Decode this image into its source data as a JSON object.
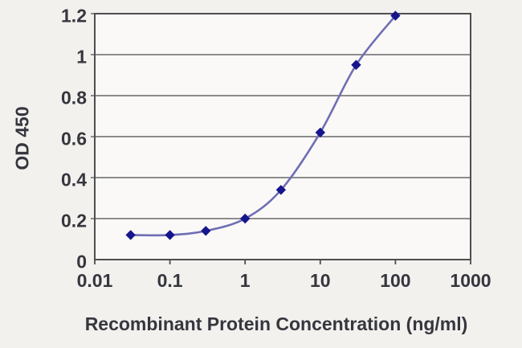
{
  "chart_data": {
    "type": "line",
    "title": "",
    "xlabel": "Recombinant Protein Concentration (ng/ml)",
    "ylabel": "OD 450",
    "x_scale": "log",
    "xlim": [
      0.01,
      1000
    ],
    "ylim": [
      0,
      1.2
    ],
    "x_ticks": [
      "0.01",
      "0.1",
      "1",
      "10",
      "100",
      "1000"
    ],
    "y_ticks": [
      "0",
      "0.2",
      "0.4",
      "0.6",
      "0.8",
      "1",
      "1.2"
    ],
    "grid": "horizontal",
    "legend_position": "none",
    "series": [
      {
        "name": "OD 450",
        "marker": "diamond",
        "x": [
          0.03,
          0.1,
          0.3,
          1,
          3,
          10,
          30,
          100
        ],
        "values": [
          0.12,
          0.12,
          0.14,
          0.2,
          0.34,
          0.62,
          0.95,
          1.19
        ]
      }
    ],
    "colors": {
      "line": "#6e6eb4",
      "marker": "#16168c",
      "grid": "#7d7d7d",
      "axis": "#4e4e4e",
      "text": "#36363e",
      "background": "#f3f1ee",
      "plot_background": "#faf9f8"
    }
  }
}
